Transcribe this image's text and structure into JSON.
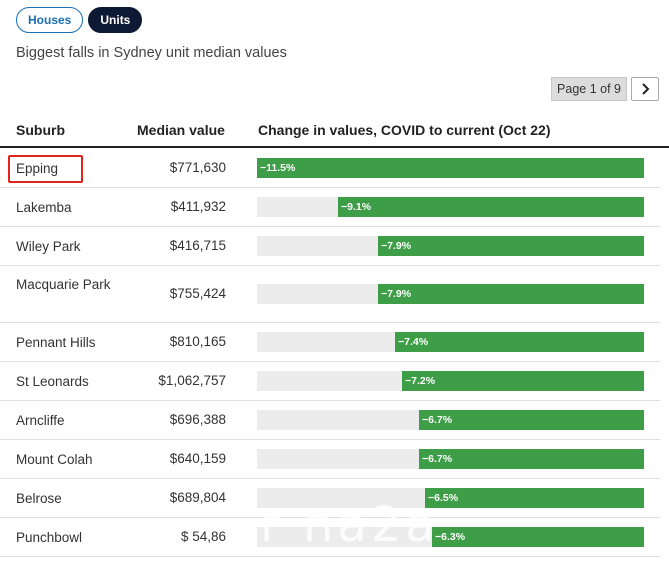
{
  "tabs": [
    {
      "label": "Houses",
      "active": false
    },
    {
      "label": "Units",
      "active": true
    }
  ],
  "subtitle": "Biggest falls in Sydney unit median values",
  "pager": {
    "label": "Page 1 of 9",
    "next_icon": "chevron-right-icon"
  },
  "table": {
    "headers": {
      "suburb": "Suburb",
      "median": "Median value",
      "change": "Change in values, COVID to current (Oct 22)"
    },
    "max_abs_change": 11.5,
    "rows": [
      {
        "suburb": "Epping",
        "value": "$771,630",
        "change": -11.5,
        "change_label": "−11.5%",
        "highlighted": true
      },
      {
        "suburb": "Lakemba",
        "value": "$411,932",
        "change": -9.1,
        "change_label": "−9.1%"
      },
      {
        "suburb": "Wiley Park",
        "value": "$416,715",
        "change": -7.9,
        "change_label": "−7.9%"
      },
      {
        "suburb": "Macquarie Park",
        "value": "$755,424",
        "change": -7.9,
        "change_label": "−7.9%"
      },
      {
        "suburb": "Pennant Hills",
        "value": "$810,165",
        "change": -7.4,
        "change_label": "−7.4%"
      },
      {
        "suburb": "St Leonards",
        "value": "$1,062,757",
        "change": -7.2,
        "change_label": "−7.2%"
      },
      {
        "suburb": "Arncliffe",
        "value": "$696,388",
        "change": -6.7,
        "change_label": "−6.7%"
      },
      {
        "suburb": "Mount Colah",
        "value": "$640,159",
        "change": -6.7,
        "change_label": "−6.7%"
      },
      {
        "suburb": "Belrose",
        "value": "$689,804",
        "change": -6.5,
        "change_label": "−6.5%"
      },
      {
        "suburb": "Punchbowl",
        "value": "$ 54,86",
        "change": -6.3,
        "change_label": "−6.3%"
      }
    ]
  },
  "colors": {
    "bar": "#3d9e47",
    "track": "#ececec",
    "highlight": "#e0241b",
    "tab_accent": "#1a6fb5",
    "tab_active_bg": "#0e1a33"
  }
}
